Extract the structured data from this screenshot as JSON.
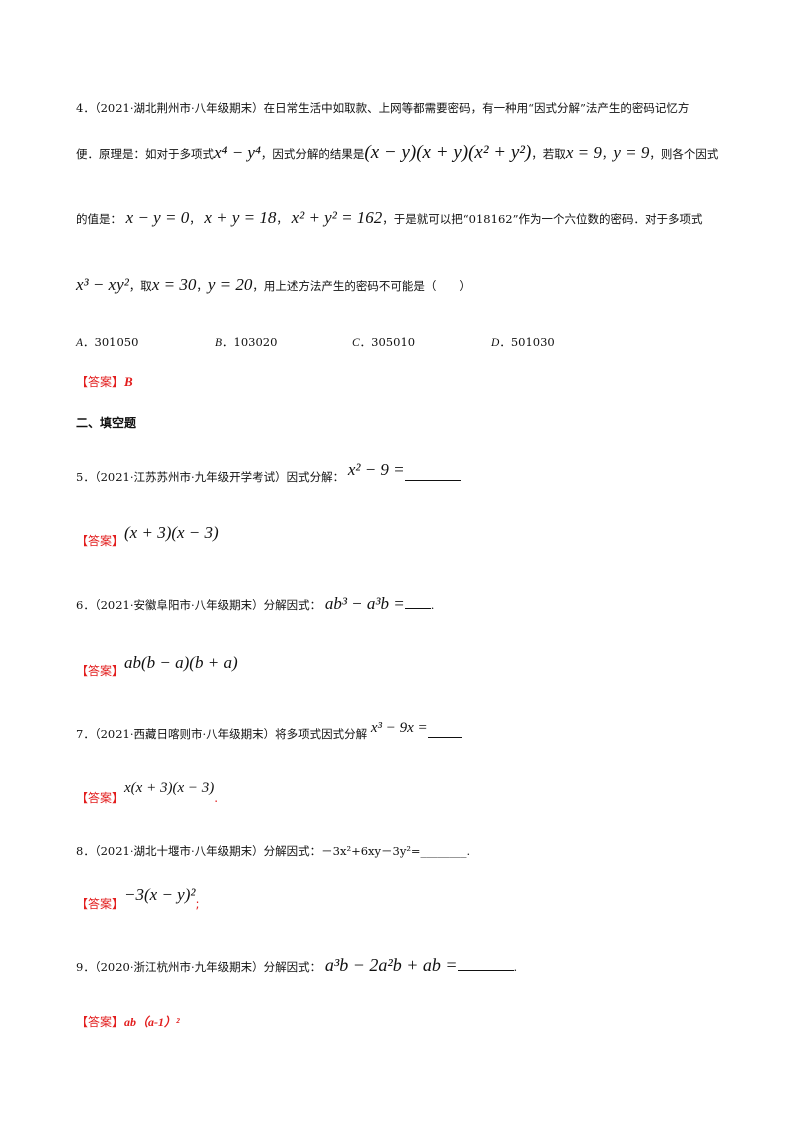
{
  "q4": {
    "num": "4．",
    "source": "（2021·湖北荆州市·八年级期末）",
    "line1_text": "在日常生活中如取款、上网等都需要密码，有一种用“因式分解”法产生的密码记忆方",
    "line2_a": "便．原理是：如对于多项式",
    "line2_math1": "x⁴ − y⁴",
    "line2_b": "，因式分解的结果是",
    "line2_math2": "(x − y)(x + y)(x² + y²)",
    "line2_c": "，若取",
    "line2_math3": "x = 9",
    "line2_d": "，",
    "line2_math4": "y = 9",
    "line2_e": "，则各个因式",
    "line3_a": "的值是：",
    "line3_math1": "x − y = 0",
    "line3_math2": "x + y = 18",
    "line3_math3": "x² + y² = 162",
    "line3_b": "，于是就可以把“018162”作为一个六位数的密码．对于多项式",
    "line4_math1": "x³ − xy²",
    "line4_a": "，取",
    "line4_math2": "x = 30",
    "line4_math3": "y = 20",
    "line4_b": "，用上述方法产生的密码不可能是（　　）",
    "options": [
      {
        "letter": "A",
        "value": "301050"
      },
      {
        "letter": "B",
        "value": "103020"
      },
      {
        "letter": "C",
        "value": "305010"
      },
      {
        "letter": "D",
        "value": "501030"
      }
    ],
    "answer_label": "【答案】",
    "answer": "B"
  },
  "section_title": "二、填空题",
  "q5": {
    "num": "5．",
    "source": "（2021·江苏苏州市·九年级开学考试）",
    "text": "因式分解：",
    "math": "x² − 9 =",
    "answer_label": "【答案】",
    "answer": "(x + 3)(x − 3)"
  },
  "q6": {
    "num": "6．",
    "source": "（2021·安徽阜阳市·八年级期末）",
    "text": "分解因式：",
    "math": "ab³ − a³b =",
    "answer_label": "【答案】",
    "answer": "ab(b − a)(b + a)"
  },
  "q7": {
    "num": "7．",
    "source": "（2021·西藏日喀则市·八年级期末）",
    "text": "将多项式因式分解",
    "math": "x³ − 9x =",
    "answer_label": "【答案】",
    "answer": "x(x + 3)(x − 3)",
    "answer_tail": "."
  },
  "q8": {
    "num": "8．",
    "source": "（2021·湖北十堰市·八年级期末）",
    "text": "分解因式：－3x²+6xy－3y²=________.",
    "answer_label": "【答案】",
    "answer": "−3(x − y)²",
    "answer_tail": ";"
  },
  "q9": {
    "num": "9．",
    "source": "（2020·浙江杭州市·九年级期末）",
    "text": "分解因式：",
    "math": "a³b − 2a²b + ab =",
    "answer_label": "【答案】",
    "answer": "ab（a-1）²"
  }
}
